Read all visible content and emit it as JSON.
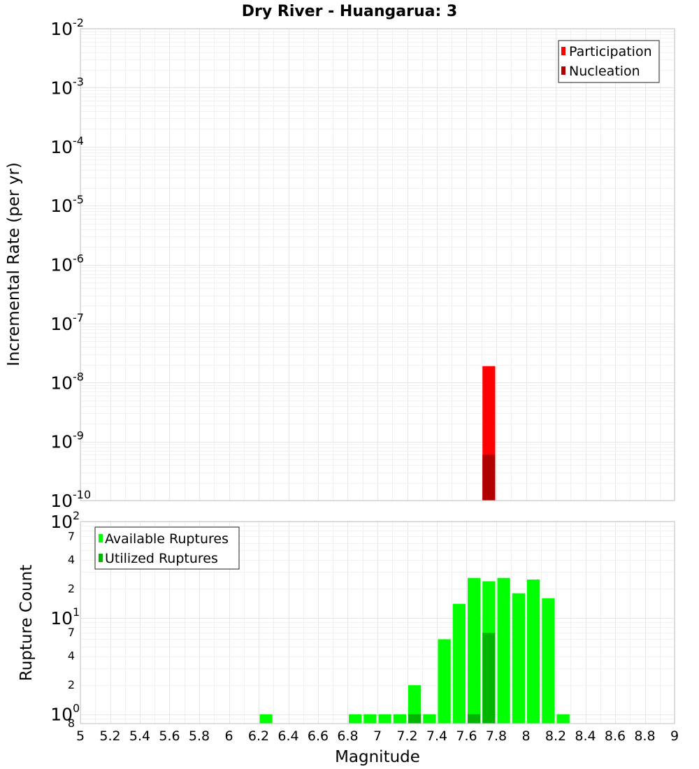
{
  "title": "Dry River - Huangarua: 3",
  "chart_data": [
    {
      "type": "bar",
      "panel": "top",
      "ylabel": "Incremental Rate (per yr)",
      "xlabel": "",
      "xlim": [
        5,
        9
      ],
      "ylim": [
        1e-10,
        0.01
      ],
      "yscale": "log",
      "bin_width": 0.1,
      "y_ticks": [
        {
          "base": "10",
          "exp": "-2",
          "value": 0.01
        },
        {
          "base": "10",
          "exp": "-3",
          "value": 0.001
        },
        {
          "base": "10",
          "exp": "-4",
          "value": 0.0001
        },
        {
          "base": "10",
          "exp": "-5",
          "value": 1e-05
        },
        {
          "base": "10",
          "exp": "-6",
          "value": 1e-06
        },
        {
          "base": "10",
          "exp": "-7",
          "value": 1e-07
        },
        {
          "base": "10",
          "exp": "-8",
          "value": 1e-08
        },
        {
          "base": "10",
          "exp": "-9",
          "value": 1e-09
        },
        {
          "base": "10",
          "exp": "-10",
          "value": 1e-10
        }
      ],
      "series": [
        {
          "name": "Participation",
          "color": "#ff0000",
          "x": [
            7.75
          ],
          "values": [
            1.9e-08
          ]
        },
        {
          "name": "Nucleation",
          "color": "#b00000",
          "x": [
            7.75
          ],
          "values": [
            6e-10
          ]
        }
      ],
      "legend": {
        "position": "top-right",
        "entries": [
          "Participation",
          "Nucleation"
        ]
      }
    },
    {
      "type": "bar",
      "panel": "bottom",
      "ylabel": "Rupture Count",
      "xlabel": "Magnitude",
      "xlim": [
        5,
        9
      ],
      "ylim": [
        0.8,
        100
      ],
      "yscale": "log",
      "bin_width": 0.1,
      "x_ticks": [
        "5",
        "5.2",
        "5.4",
        "5.6",
        "5.8",
        "6",
        "6.2",
        "6.4",
        "6.6",
        "6.8",
        "7",
        "7.2",
        "7.4",
        "7.6",
        "7.8",
        "8",
        "8.2",
        "8.4",
        "8.6",
        "8.8",
        "9"
      ],
      "y_ticks": [
        {
          "base": "10",
          "exp": "2",
          "value": 100
        },
        {
          "base": "10",
          "exp": "1",
          "value": 10
        },
        {
          "base": "10",
          "exp": "0",
          "value": 1
        }
      ],
      "y_minor_ticks": [
        {
          "label": "7",
          "value": 70
        },
        {
          "label": "4",
          "value": 40
        },
        {
          "label": "2",
          "value": 20
        },
        {
          "label": "7",
          "value": 7
        },
        {
          "label": "4",
          "value": 4
        },
        {
          "label": "2",
          "value": 2
        },
        {
          "label": "8",
          "value": 0.8
        }
      ],
      "series": [
        {
          "name": "Available Ruptures",
          "color": "#00ff00",
          "x": [
            6.25,
            6.85,
            6.95,
            7.05,
            7.15,
            7.25,
            7.35,
            7.45,
            7.55,
            7.65,
            7.75,
            7.85,
            7.95,
            8.05,
            8.15,
            8.25
          ],
          "values": [
            1,
            1,
            1,
            1,
            1,
            2,
            1,
            6,
            14,
            26,
            24,
            26,
            18,
            25,
            16,
            1
          ]
        },
        {
          "name": "Utilized Ruptures",
          "color": "#00b400",
          "x": [
            7.25,
            7.65,
            7.75
          ],
          "values": [
            1,
            1,
            7
          ]
        }
      ],
      "legend": {
        "position": "top-left",
        "entries": [
          "Available Ruptures",
          "Utilized Ruptures"
        ]
      }
    }
  ]
}
